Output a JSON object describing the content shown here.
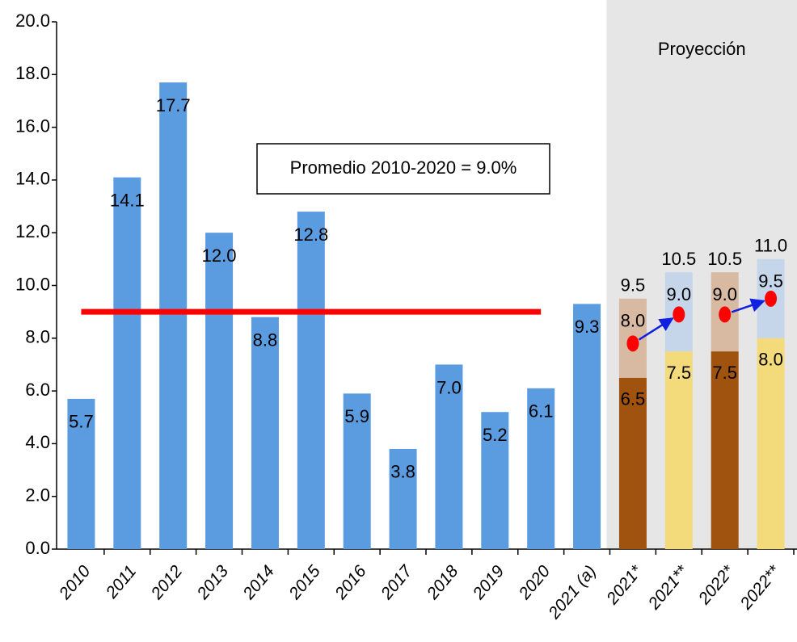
{
  "chart_data": {
    "type": "bar",
    "categories": [
      "2010",
      "2011",
      "2012",
      "2013",
      "2014",
      "2015",
      "2016",
      "2017",
      "2018",
      "2019",
      "2020",
      "2021 (a)",
      "2021*",
      "2021**",
      "2022*",
      "2022**"
    ],
    "values": [
      5.7,
      14.1,
      17.7,
      12.0,
      8.8,
      12.8,
      5.9,
      3.8,
      7.0,
      5.2,
      6.1,
      9.3,
      null,
      null,
      null,
      null
    ],
    "value_labels": [
      "5.7",
      "14.1",
      "17.7",
      "12.0",
      "8.8",
      "12.8",
      "5.9",
      "3.8",
      "7.0",
      "5.2",
      "6.1",
      "9.3",
      null,
      null,
      null,
      null
    ],
    "color": "#5b9be0",
    "low": [
      null,
      null,
      null,
      null,
      null,
      null,
      null,
      null,
      null,
      null,
      null,
      null,
      6.5,
      7.5,
      7.5,
      8.0
    ],
    "low_labels": [
      null,
      null,
      null,
      null,
      null,
      null,
      null,
      null,
      null,
      null,
      null,
      null,
      "6.5",
      "7.5",
      "7.5",
      "8.0"
    ],
    "central": [
      null,
      null,
      null,
      null,
      null,
      null,
      null,
      null,
      null,
      null,
      null,
      null,
      8.0,
      9.0,
      9.0,
      9.5
    ],
    "central_labels": [
      null,
      null,
      null,
      null,
      null,
      null,
      null,
      null,
      null,
      null,
      null,
      null,
      "8.0",
      "9.0",
      "9.0",
      "9.5"
    ],
    "high": [
      null,
      null,
      null,
      null,
      null,
      null,
      null,
      null,
      null,
      null,
      null,
      null,
      9.5,
      10.5,
      10.5,
      11.0
    ],
    "high_labels": [
      null,
      null,
      null,
      null,
      null,
      null,
      null,
      null,
      null,
      null,
      null,
      null,
      "9.5",
      "10.5",
      "10.5",
      "11.0"
    ],
    "low_colors": [
      null,
      null,
      null,
      null,
      null,
      null,
      null,
      null,
      null,
      null,
      null,
      null,
      "#a0520f",
      "#f3da7a",
      "#a0520f",
      "#f3da7a"
    ],
    "high_colors": [
      null,
      null,
      null,
      null,
      null,
      null,
      null,
      null,
      null,
      null,
      null,
      null,
      "#d8b9a2",
      "#c6d6ea",
      "#d8b9a2",
      "#c6d6ea"
    ],
    "points": [
      null,
      null,
      null,
      null,
      null,
      null,
      null,
      null,
      null,
      null,
      null,
      null,
      7.8,
      8.9,
      8.9,
      9.5
    ],
    "point_color": "#ff0000",
    "arrow_color": "#1020e0",
    "average": 9.0,
    "average_color": "#ff0000",
    "annotation": "Promedio 2010-2020 = 9.0%",
    "projection_label": "Proyección",
    "ylim": [
      0,
      20
    ],
    "yticks": [
      {
        "value": 0,
        "label": "0.0"
      },
      {
        "value": 2,
        "label": "2.0"
      },
      {
        "value": 4,
        "label": "4.0"
      },
      {
        "value": 6,
        "label": "6.0"
      },
      {
        "value": 8,
        "label": "8.0"
      },
      {
        "value": 10,
        "label": "10.0"
      },
      {
        "value": 12,
        "label": "12.0"
      },
      {
        "value": 14,
        "label": "14.0"
      },
      {
        "value": 16,
        "label": "16.0"
      },
      {
        "value": 18,
        "label": "18.0"
      },
      {
        "value": 20,
        "label": "20.0"
      }
    ],
    "grid": false
  }
}
